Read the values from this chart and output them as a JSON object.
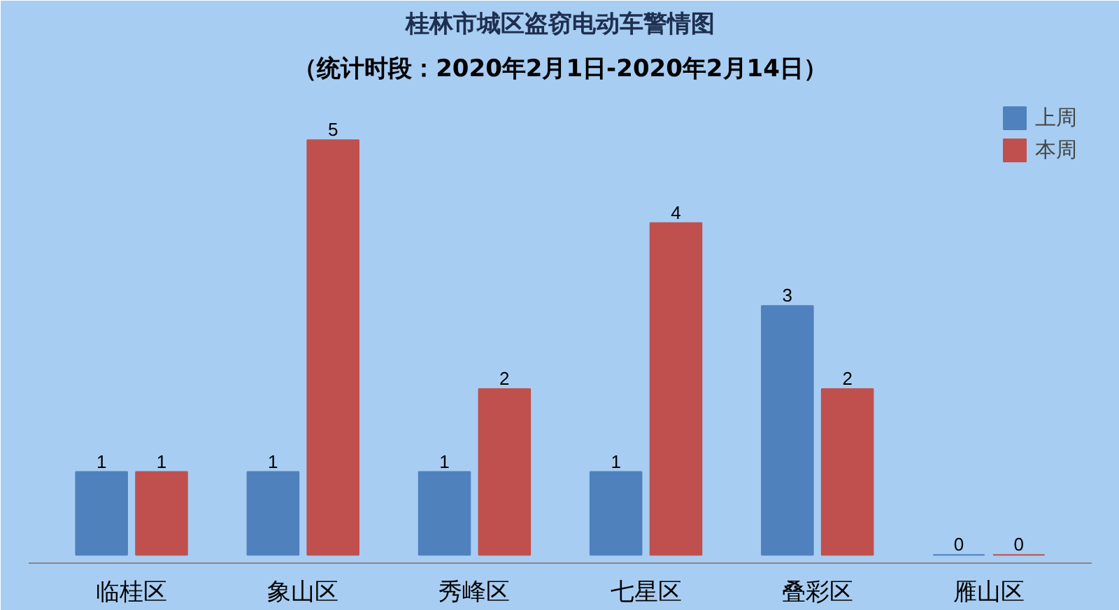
{
  "chart_data": {
    "type": "bar",
    "title": "桂林市城区盗窃电动车警情图",
    "subtitle": "（统计时段：2020年2月1日-2020年2月14日）",
    "categories": [
      "临桂区",
      "象山区",
      "秀峰区",
      "七星区",
      "叠彩区",
      "雁山区"
    ],
    "series": [
      {
        "name": "上周",
        "color": "#4f81bd",
        "values": [
          1,
          1,
          1,
          1,
          3,
          0
        ]
      },
      {
        "name": "本周",
        "color": "#c0504d",
        "values": [
          1,
          5,
          2,
          4,
          2,
          0
        ]
      }
    ],
    "data_labels": true,
    "grid": false,
    "legend": "top right"
  }
}
